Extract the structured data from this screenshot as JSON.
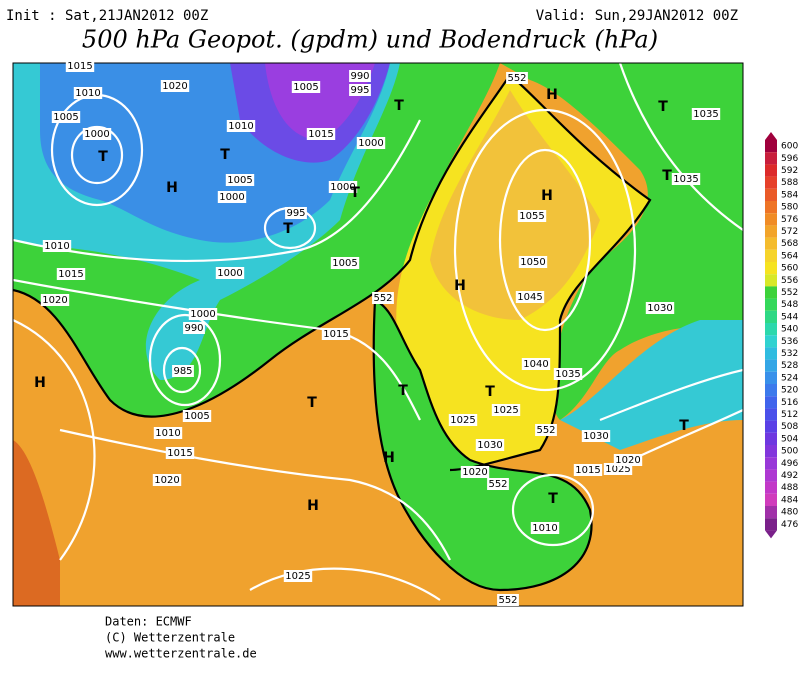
{
  "header": {
    "init": "Init : Sat,21JAN2012 00Z",
    "valid": "Valid: Sun,29JAN2012 00Z",
    "title": "500 hPa Geopot. (gpdm) und Bodendruck (hPa)"
  },
  "footer": {
    "source": "Daten: ECMWF",
    "copyright": "(C) Wetterzentrale",
    "url": "www.wetterzentrale.de"
  },
  "colorbar": {
    "labels": [
      600,
      596,
      592,
      588,
      584,
      580,
      576,
      572,
      568,
      564,
      560,
      556,
      552,
      548,
      544,
      540,
      536,
      532,
      528,
      524,
      520,
      516,
      512,
      508,
      504,
      500,
      496,
      492,
      488,
      484,
      480,
      476
    ]
  },
  "map_labels": [
    "1015",
    "1020",
    "1010",
    "1005",
    "1000",
    "T",
    "H",
    "1010",
    "1005",
    "1000",
    "T",
    "1005",
    "1015",
    "1000",
    "1000",
    "T",
    "995",
    "T",
    "1005",
    "1000",
    "990",
    "995",
    "T",
    "1010",
    "1015",
    "1020",
    "H",
    "1000",
    "990",
    "985",
    "1015",
    "1005",
    "1010",
    "1015",
    "1020",
    "T",
    "H",
    "H",
    "1025",
    "552",
    "T",
    "1025",
    "T",
    "1025",
    "1030",
    "1020",
    "552",
    "552",
    "1015",
    "T",
    "1010",
    "552",
    "1030",
    "1025",
    "1020",
    "T",
    "1035",
    "1040",
    "1045",
    "1050",
    "1055",
    "H",
    "H",
    "1030",
    "1035",
    "T",
    "T",
    "1035",
    "H",
    "552"
  ]
}
